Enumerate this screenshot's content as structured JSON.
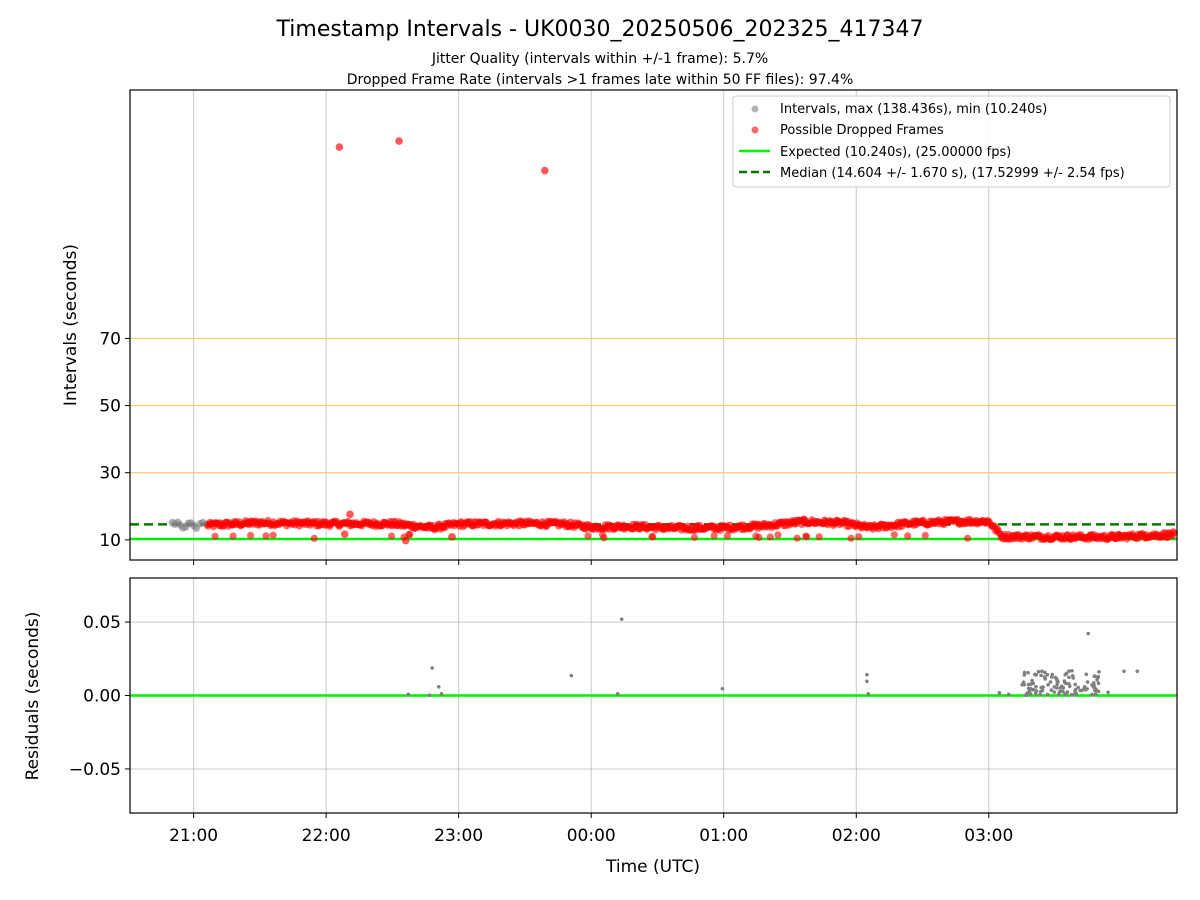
{
  "figure": {
    "title": "Timestamp Intervals - UK0030_20250506_202325_417347",
    "subtitle_1": "Jitter Quality (intervals within +/-1 frame): 5.7%",
    "subtitle_2": "Dropped Frame Rate (intervals >1 frames late within 50 FF files): 97.4%",
    "xlabel": "Time (UTC)"
  },
  "colors": {
    "intervals": "#808080",
    "dropped": "#ff0000",
    "expected": "#00ee00",
    "median": "#007700",
    "threshold": "#ffcc66",
    "grid": "#b0b0b0"
  },
  "chart_data": [
    {
      "type": "scatter",
      "ylabel": "Intervals (seconds)",
      "x_tick_labels": [
        "21:00",
        "22:00",
        "23:00",
        "00:00",
        "01:00",
        "02:00",
        "03:00"
      ],
      "y_ticks": [
        10,
        30,
        50,
        70
      ],
      "threshold_lines": [
        30,
        50,
        70
      ],
      "x_range_hours_utc": [
        20.52,
        28.42
      ],
      "ylim": [
        4,
        144
      ],
      "legend_position": "top-right",
      "legend": {
        "intervals": "Intervals, max (138.436s), min (10.240s)",
        "dropped": "Possible Dropped Frames",
        "expected": "Expected (10.240s), (25.00000 fps)",
        "median": "Median (14.604 +/- 1.670 s), (17.52999 +/- 2.54 fps)"
      },
      "expected_interval": 10.24,
      "median_interval": 14.604,
      "series": [
        {
          "name": "Intervals, max (138.436s), min (10.240s)",
          "kind": "normal",
          "points": [
            [
              20.84,
              15.1
            ],
            [
              20.86,
              14.7
            ],
            [
              20.88,
              15.2
            ],
            [
              20.9,
              14.4
            ],
            [
              20.92,
              13.6
            ],
            [
              20.94,
              13.9
            ],
            [
              20.96,
              14.9
            ],
            [
              20.98,
              15.0
            ],
            [
              21.0,
              14.3
            ],
            [
              21.02,
              13.5
            ],
            [
              21.05,
              14.8
            ],
            [
              21.07,
              15.1
            ]
          ]
        },
        {
          "name": "Possible Dropped Frames",
          "kind": "dropped",
          "outliers": [
            [
              22.1,
              127.0
            ],
            [
              22.55,
              128.8
            ],
            [
              23.65,
              120.0
            ],
            [
              22.18,
              17.6
            ],
            [
              22.14,
              11.7
            ],
            [
              22.6,
              9.8
            ],
            [
              22.95,
              10.9
            ]
          ],
          "band": [
            [
              21.1,
              14.4
            ],
            [
              21.5,
              15.1
            ],
            [
              22.0,
              14.8
            ],
            [
              22.5,
              14.8
            ],
            [
              22.8,
              13.6
            ],
            [
              23.0,
              14.7
            ],
            [
              23.5,
              14.9
            ],
            [
              23.8,
              14.7
            ],
            [
              24.0,
              13.8
            ],
            [
              24.3,
              14.0
            ],
            [
              24.6,
              13.5
            ],
            [
              25.0,
              13.6
            ],
            [
              25.3,
              14.2
            ],
            [
              25.6,
              15.4
            ],
            [
              25.9,
              15.0
            ],
            [
              26.1,
              13.6
            ],
            [
              26.4,
              14.9
            ],
            [
              26.8,
              15.5
            ],
            [
              27.0,
              15.5
            ],
            [
              27.1,
              11.0
            ],
            [
              27.5,
              10.9
            ],
            [
              27.9,
              10.8
            ],
            [
              28.4,
              11.6
            ]
          ]
        }
      ]
    },
    {
      "type": "scatter",
      "ylabel": "Residuals (seconds)",
      "y_tick_labels": [
        "0.05",
        "0.00",
        "−0.05"
      ],
      "y_ticks": [
        0.05,
        0.0,
        -0.05
      ],
      "ylim": [
        -0.08,
        0.08
      ],
      "zero_line": 0.0,
      "series": [
        {
          "name": "Residuals",
          "points": [
            [
              22.62,
              0.0008
            ],
            [
              22.78,
              0.0002
            ],
            [
              22.8,
              0.0187
            ],
            [
              22.85,
              0.0059
            ],
            [
              22.87,
              0.0012
            ],
            [
              23.85,
              0.0135
            ],
            [
              24.2,
              0.0012
            ],
            [
              24.23,
              0.052
            ],
            [
              24.99,
              0.0046
            ],
            [
              26.08,
              0.0142
            ],
            [
              26.08,
              0.0097
            ],
            [
              26.09,
              0.0012
            ],
            [
              27.08,
              0.0018
            ],
            [
              27.15,
              0.0008
            ],
            [
              27.28,
              0.0001
            ],
            [
              27.75,
              0.0422
            ],
            [
              27.9,
              0.0022
            ],
            [
              28.02,
              0.0165
            ],
            [
              28.12,
              0.0165
            ]
          ]
        }
      ]
    }
  ]
}
